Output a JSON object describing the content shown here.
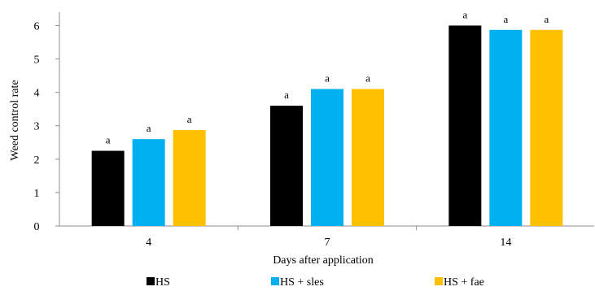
{
  "chart_data": {
    "type": "bar",
    "title": "",
    "xlabel": "Days after application",
    "ylabel": "Weed control rate",
    "categories": [
      "4",
      "7",
      "14"
    ],
    "ylim": [
      0,
      6.4
    ],
    "yticks": [
      "0",
      "1",
      "2",
      "3",
      "4",
      "5",
      "6"
    ],
    "grid": false,
    "legend_position": "bottom",
    "series": [
      {
        "name": "HS",
        "color": "#000000",
        "values": [
          2.25,
          3.6,
          6.0
        ],
        "labels": [
          "a",
          "a",
          "a"
        ]
      },
      {
        "name": "HS + sles",
        "color": "#00B0F0",
        "values": [
          2.6,
          4.1,
          5.87
        ],
        "labels": [
          "a",
          "a",
          "a"
        ]
      },
      {
        "name": "HS + fae",
        "color": "#FFC000",
        "values": [
          2.87,
          4.1,
          5.87
        ],
        "labels": [
          "a",
          "a",
          "a"
        ]
      }
    ]
  }
}
